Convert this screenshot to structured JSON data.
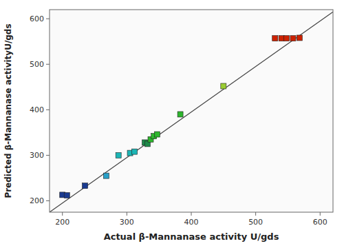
{
  "chart_data": {
    "type": "scatter",
    "xlabel": "Actual β-Mannanase activity U/gds",
    "ylabel": "Predicted β-Mannanase activityU/gds",
    "xlim": [
      180,
      620
    ],
    "ylim": [
      175,
      620
    ],
    "xticks": [
      200,
      300,
      400,
      500,
      600
    ],
    "yticks": [
      200,
      300,
      400,
      500,
      600
    ],
    "grid": false,
    "series": [
      {
        "type": "scatter",
        "marker": "square",
        "x": [
          200,
          207,
          235,
          268,
          287,
          305,
          312,
          328,
          332,
          337,
          342,
          347,
          383,
          450,
          530,
          540,
          548,
          558,
          568
        ],
        "values": [
          213,
          212,
          233,
          255,
          300,
          305,
          308,
          328,
          325,
          335,
          342,
          346,
          390,
          452,
          557,
          557,
          557,
          557,
          558
        ],
        "colors": [
          "#1a3a8f",
          "#1a3a8f",
          "#1a3a8f",
          "#29a0c8",
          "#1cb5b5",
          "#1cb5b5",
          "#1cb5b5",
          "#1e8a4a",
          "#1e8a4a",
          "#2db52d",
          "#2db52d",
          "#2db52d",
          "#2db52d",
          "#9acd32",
          "#cc2200",
          "#cc2200",
          "#cc2200",
          "#cc2200",
          "#cc2200"
        ]
      },
      {
        "type": "line",
        "line_style": "solid",
        "color": "#444444",
        "x": [
          180,
          620
        ],
        "values": [
          175,
          615
        ]
      }
    ]
  }
}
